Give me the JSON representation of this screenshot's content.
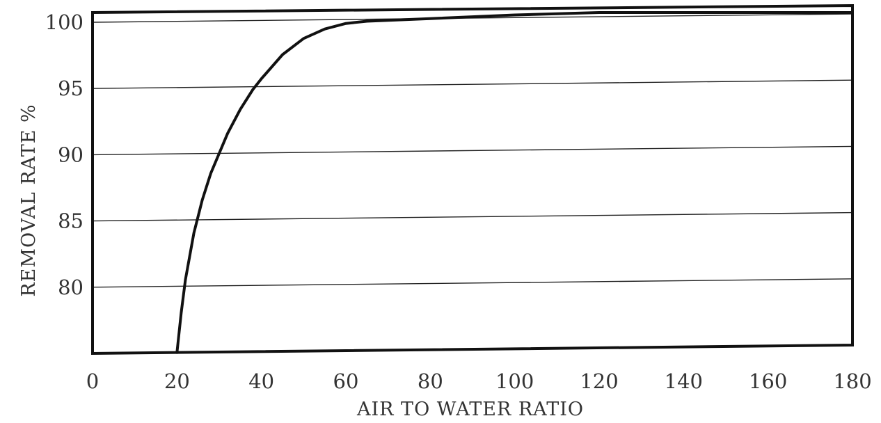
{
  "chart_data": {
    "type": "line",
    "title": "",
    "xlabel": "AIR TO WATER RATIO",
    "ylabel": "REMOVAL RATE %",
    "xlim": [
      0,
      180
    ],
    "ylim": [
      75,
      100
    ],
    "x_ticks": [
      "0",
      "20",
      "40",
      "60",
      "80",
      "100",
      "120",
      "140",
      "160",
      "180"
    ],
    "y_ticks": [
      "100",
      "95",
      "90",
      "85",
      "80"
    ],
    "grid": "horizontal",
    "legend": "none",
    "series": [
      {
        "x": [
          20,
          21,
          22,
          24,
          26,
          28,
          30,
          32,
          35,
          38,
          40,
          45,
          50,
          55,
          60,
          65,
          70,
          80,
          100,
          120,
          140,
          160,
          180
        ],
        "y": [
          75,
          78,
          80.5,
          84,
          86.5,
          88.5,
          90,
          91.5,
          93.3,
          94.8,
          95.6,
          97.4,
          98.6,
          99.3,
          99.7,
          99.85,
          99.9,
          100,
          100.2,
          100.5,
          100.7,
          100.8,
          100.8
        ]
      }
    ],
    "colors": {
      "line": "#111111",
      "frame": "#111111",
      "grid": "#222222",
      "text": "#333333"
    }
  }
}
